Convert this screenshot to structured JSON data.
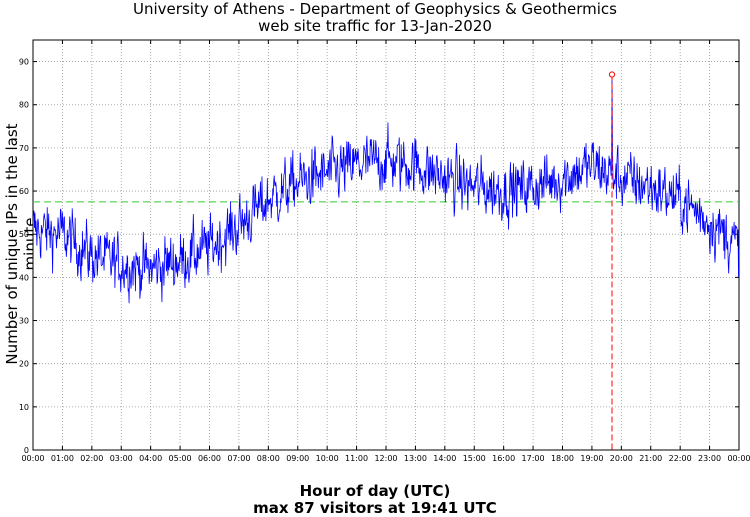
{
  "chart_data": {
    "type": "line",
    "title": "University of Athens - Department of Geophysics & Geothermics",
    "subtitle": "web site traffic for 13-Jan-2020",
    "xlabel": "Hour of day (UTC)",
    "max_note": "max 87 visitors at 19:41 UTC",
    "ylabel": "Number of unique IPs in the last minute",
    "xlim": [
      0,
      24
    ],
    "ylim": [
      0,
      95
    ],
    "xticks": [
      "00:00",
      "01:00",
      "02:00",
      "03:00",
      "04:00",
      "05:00",
      "06:00",
      "07:00",
      "08:00",
      "09:00",
      "10:00",
      "11:00",
      "12:00",
      "13:00",
      "14:00",
      "15:00",
      "16:00",
      "17:00",
      "18:00",
      "19:00",
      "20:00",
      "21:00",
      "22:00",
      "23:00",
      "00:00"
    ],
    "yticks": [
      0,
      10,
      20,
      30,
      40,
      50,
      60,
      70,
      80,
      90
    ],
    "grid": true,
    "mean_value": 57.5,
    "max": {
      "hour": 19.683,
      "value": 87
    },
    "series": [
      {
        "name": "visitors",
        "color": "#0000ff",
        "hourly_trend": [
          [
            0,
            51
          ],
          [
            1,
            50
          ],
          [
            2,
            45
          ],
          [
            3,
            43
          ],
          [
            4,
            42
          ],
          [
            5,
            44
          ],
          [
            6,
            47
          ],
          [
            7,
            52
          ],
          [
            8,
            58
          ],
          [
            9,
            62
          ],
          [
            10,
            64
          ],
          [
            11,
            66
          ],
          [
            12,
            67
          ],
          [
            13,
            66
          ],
          [
            14,
            63
          ],
          [
            15,
            61
          ],
          [
            16,
            60
          ],
          [
            17,
            61
          ],
          [
            18,
            63
          ],
          [
            19,
            66
          ],
          [
            20,
            63
          ],
          [
            21,
            61
          ],
          [
            22,
            58
          ],
          [
            23,
            53
          ],
          [
            24,
            47
          ]
        ]
      }
    ],
    "colors": {
      "line": "#0000ff",
      "mean": "#33cc33",
      "max": "#ff0000",
      "grid": "#999999"
    }
  }
}
